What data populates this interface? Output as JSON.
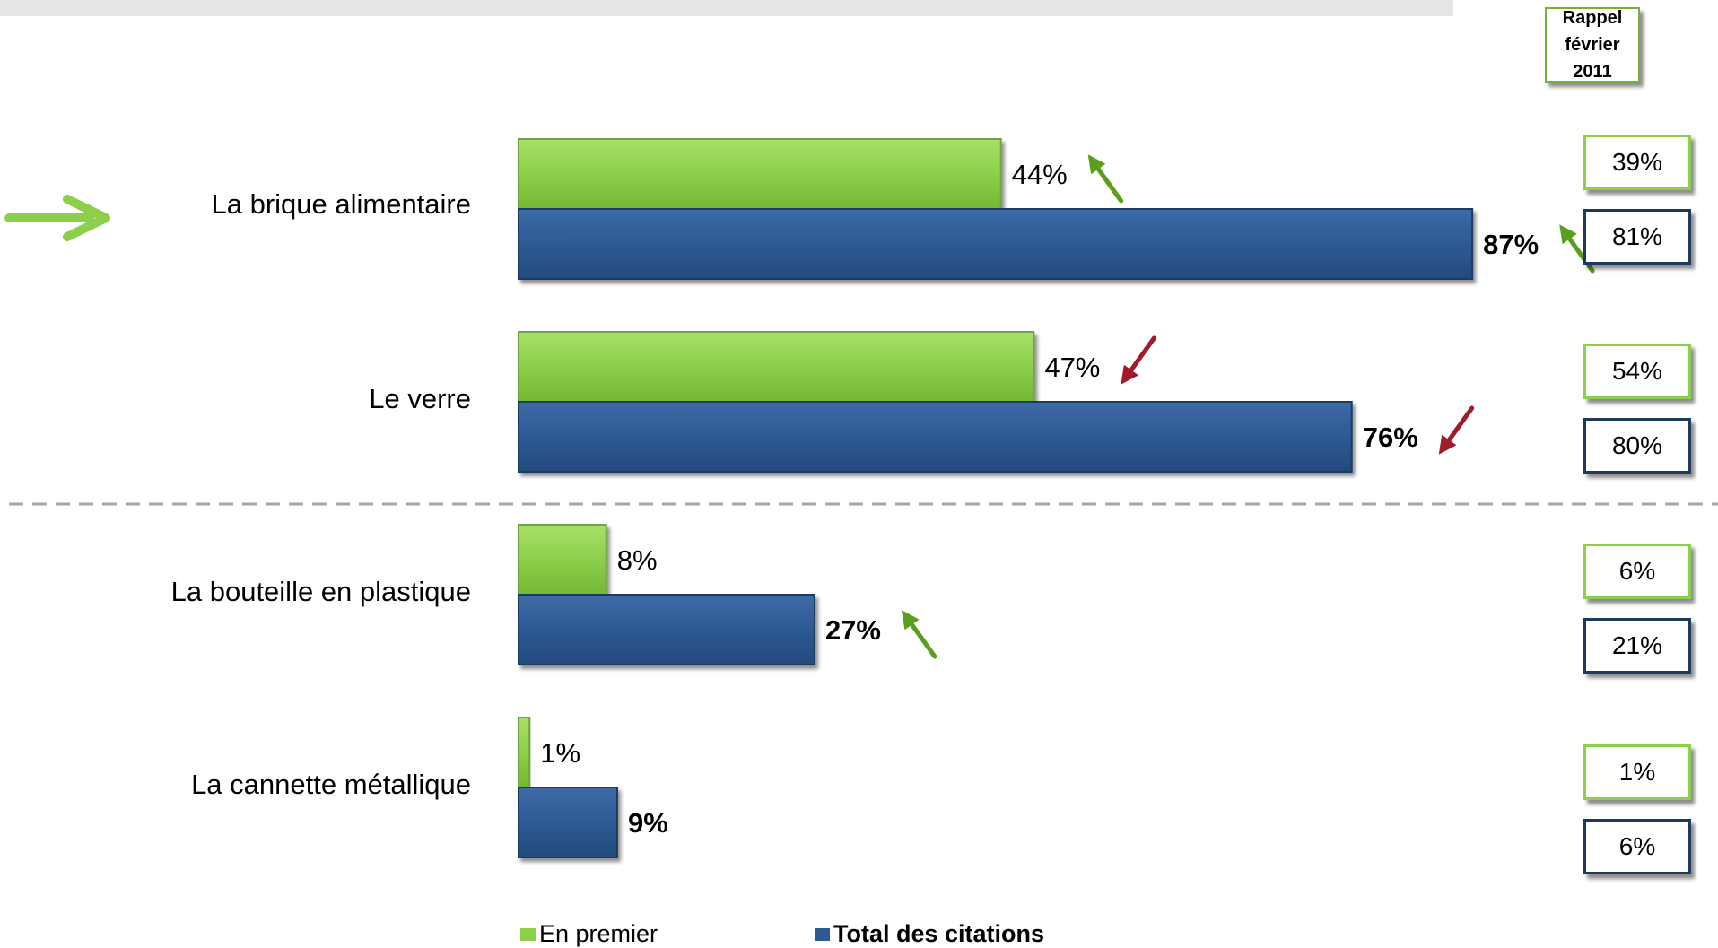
{
  "chart_data": {
    "type": "bar",
    "orientation": "horizontal",
    "categories": [
      "La brique alimentaire",
      "Le verre",
      "La bouteille en plastique",
      "La cannette métallique"
    ],
    "series": [
      {
        "name": "En premier",
        "values": [
          44,
          47,
          8,
          1
        ],
        "labels": [
          "44%",
          "47%",
          "8%",
          "1%"
        ],
        "color": "#8ccf4a"
      },
      {
        "name": "Total des citations",
        "values": [
          87,
          76,
          27,
          9
        ],
        "labels": [
          "87%",
          "76%",
          "27%",
          "9%"
        ],
        "color": "#2e5a94"
      }
    ],
    "trends": {
      "En premier": [
        "up",
        "down",
        "none",
        "none"
      ],
      "Total des citations": [
        "up",
        "down",
        "up",
        "none"
      ]
    },
    "rappel": {
      "title_line1": "Rappel",
      "title_line2": "février 2011",
      "en_premier": [
        "39%",
        "54%",
        "6%",
        "1%"
      ],
      "total": [
        "81%",
        "80%",
        "21%",
        "6%"
      ]
    },
    "highlighted_category": "La brique alimentaire",
    "legend_placement": "bottom",
    "xlim": [
      0,
      100
    ],
    "colors": {
      "up": "#5a9e1e",
      "down": "#a01c2c",
      "highlight_arrow": "#8ccf4a",
      "separator": "#a6a6a6"
    }
  }
}
